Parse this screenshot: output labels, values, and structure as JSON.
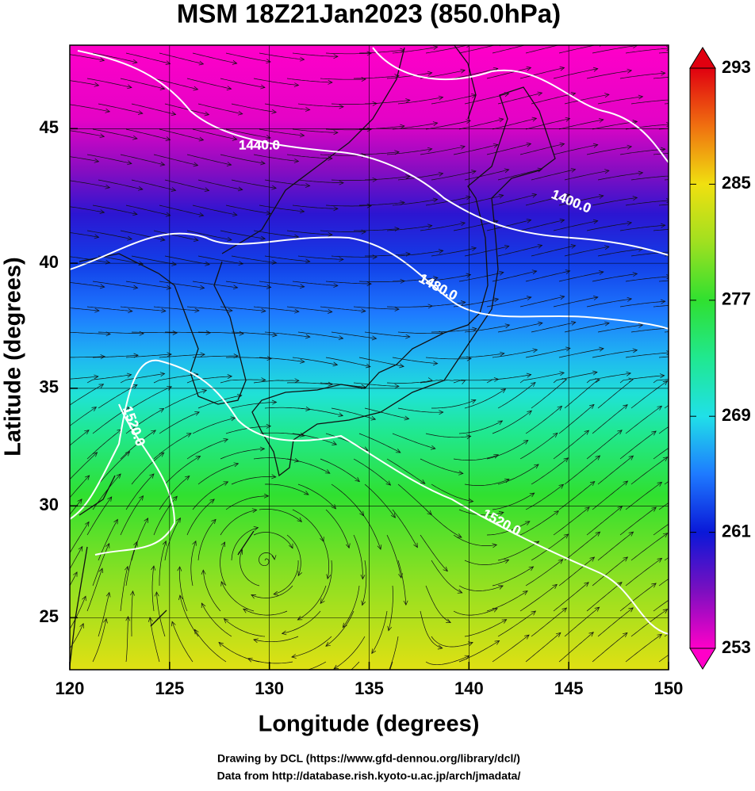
{
  "title": "MSM 18Z21Jan2023 (850.0hPa)",
  "x_axis": {
    "label": "Longitude (degrees)",
    "lim": [
      120,
      150
    ],
    "ticks": [
      120,
      125,
      130,
      135,
      140,
      145,
      150
    ]
  },
  "y_axis": {
    "label": "Latitude  (degrees)",
    "lim": [
      22.6,
      47.9
    ],
    "ticks": [
      25,
      30,
      35,
      40,
      45
    ],
    "projection": "mercator"
  },
  "colorbar": {
    "lim": [
      253,
      293
    ],
    "ticks": [
      253,
      261,
      269,
      277,
      285,
      293
    ],
    "colors": [
      "#ff00c8",
      "#7a0fc0",
      "#0a18d8",
      "#1e7aff",
      "#20e0e8",
      "#20e890",
      "#30e030",
      "#a0e020",
      "#f0e010",
      "#f07010",
      "#e00010"
    ]
  },
  "contour_labels": [
    "1440.0",
    "1400.0",
    "1480.0",
    "1520.0",
    "1520.0"
  ],
  "credits": [
    "Drawing by DCL (https://www.gfd-dennou.org/library/dcl/)",
    "Data from http://database.rish.kyoto-u.ac.jp/arch/jmadata/"
  ]
}
